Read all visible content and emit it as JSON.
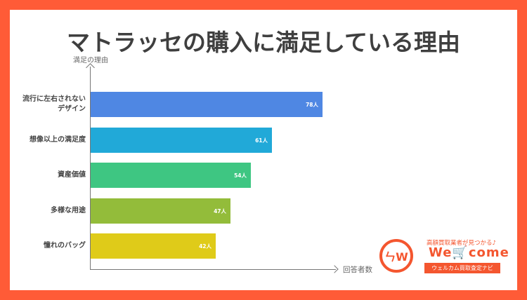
{
  "title": "マトラッセの購入に満足している理由",
  "chart_data": {
    "type": "bar",
    "orientation": "horizontal",
    "title": "マトラッセの購入に満足している理由",
    "ylabel": "満足の理由",
    "xlabel": "回答者数",
    "categories": [
      "流行に左右されないデザイン",
      "想像以上の満足度",
      "資産価値",
      "多様な用途",
      "憧れのバッグ"
    ],
    "values": [
      78,
      61,
      54,
      47,
      42
    ],
    "value_labels": [
      "78人",
      "61人",
      "54人",
      "47人",
      "42人"
    ],
    "colors": [
      "#4f87e3",
      "#21a9d8",
      "#3ec682",
      "#93bc3a",
      "#dfcb19"
    ],
    "unit": "人",
    "grid": false,
    "legend": null,
    "xlim": [
      0,
      82
    ]
  },
  "axes": {
    "y_label": "満足の理由",
    "x_label": "回答者数"
  },
  "rows": [
    {
      "label_line1": "流行に左右されない",
      "label_line2": "デザイン",
      "value": "78人",
      "color": "#4f87e3"
    },
    {
      "label_line1": "想像以上の満足度",
      "label_line2": "",
      "value": "61人",
      "color": "#21a9d8"
    },
    {
      "label_line1": "資産価値",
      "label_line2": "",
      "value": "54人",
      "color": "#3ec682"
    },
    {
      "label_line1": "多様な用途",
      "label_line2": "",
      "value": "47人",
      "color": "#93bc3a"
    },
    {
      "label_line1": "憧れのバッグ",
      "label_line2": "",
      "value": "42人",
      "color": "#dfcb19"
    }
  ],
  "logo": {
    "mark": "ㄣW",
    "tagline": "高額買取業者が見つかる♪",
    "word_a": "We",
    "word_cart": "🛒",
    "word_b": "come",
    "banner": "ウェルカム買取査定ナビ"
  },
  "colors": {
    "frame": "#ff5b37",
    "title": "#3f3f3f",
    "brand": "#f4562f"
  }
}
